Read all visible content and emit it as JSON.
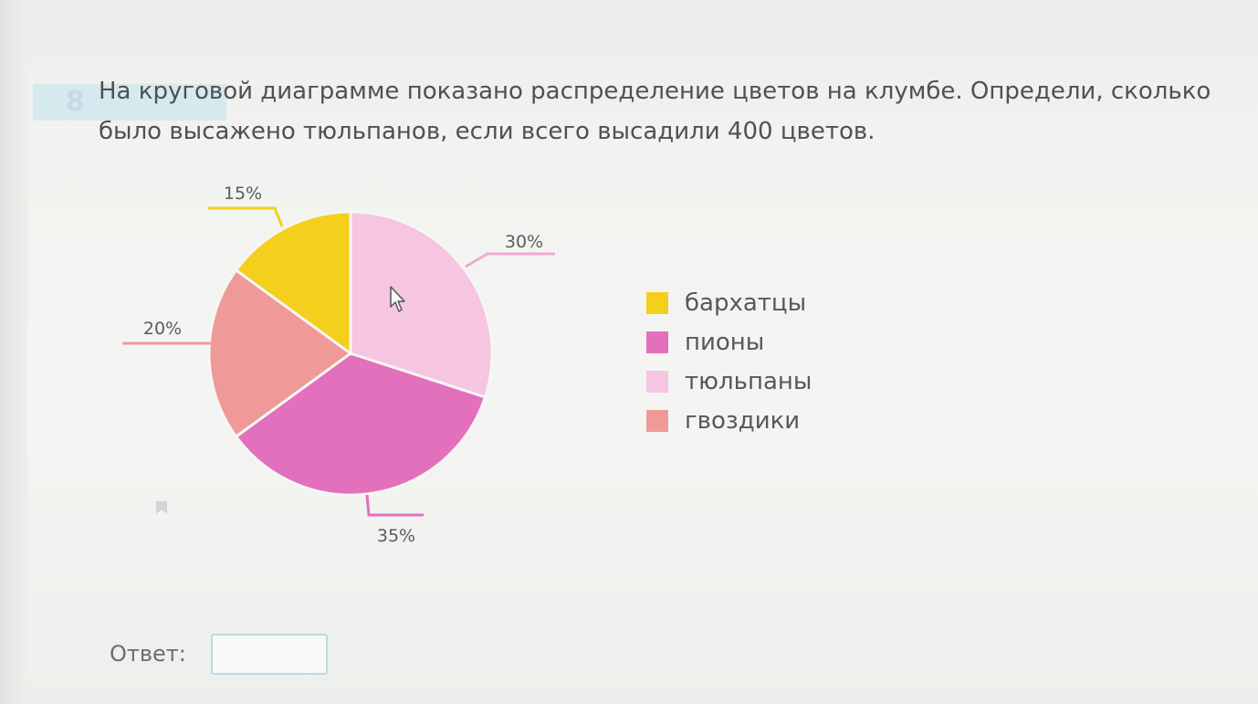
{
  "task": {
    "number": "8",
    "question": "На круговой диаграмме показано распределение цветов на клумбе. Определи, сколько было высажено тюльпанов, если всего высадили 400 цветов."
  },
  "chart_data": {
    "type": "pie",
    "unit": "%",
    "slices": [
      {
        "name": "тюльпаны",
        "value": 30,
        "label": "30%",
        "color": "#f5c5e1"
      },
      {
        "name": "пионы",
        "value": 35,
        "label": "35%",
        "color": "#e370bd"
      },
      {
        "name": "гвоздики",
        "value": 20,
        "label": "20%",
        "color": "#ef9a98"
      },
      {
        "name": "бархатцы",
        "value": 15,
        "label": "15%",
        "color": "#f4cf1c"
      }
    ],
    "legend": {
      "position": "right",
      "items": [
        {
          "label": "бархатцы",
          "color": "#f4cf1c"
        },
        {
          "label": "пионы",
          "color": "#e370bd"
        },
        {
          "label": "тюльпаны",
          "color": "#f5c5e1"
        },
        {
          "label": "гвоздики",
          "color": "#ef9a98"
        }
      ]
    }
  },
  "answer": {
    "label": "Ответ:",
    "value": ""
  }
}
